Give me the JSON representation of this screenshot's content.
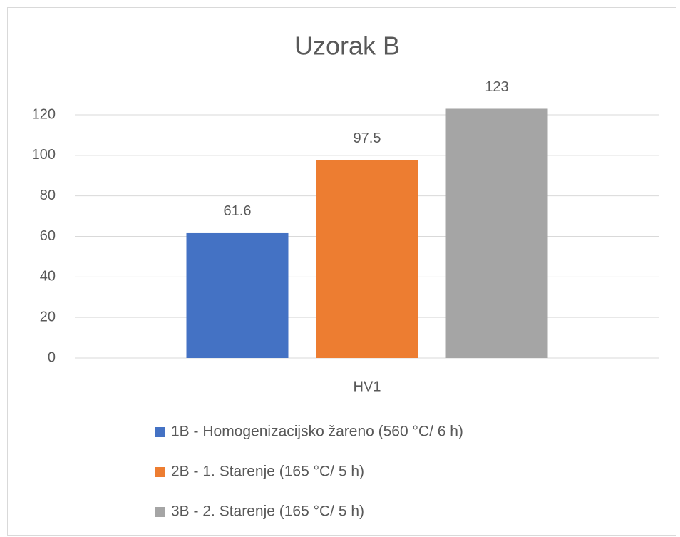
{
  "chart_data": {
    "type": "bar",
    "title": "Uzorak B",
    "categories": [
      "HV1"
    ],
    "series": [
      {
        "name": "1B - Homogenizacijsko žareno (560 °C/ 6 h)",
        "color": "#4472c4",
        "values": [
          61.6
        ]
      },
      {
        "name": "2B - 1. Starenje (165 °C/ 5 h)",
        "color": "#ed7d31",
        "values": [
          97.5
        ]
      },
      {
        "name": "3B - 2. Starenje (165 °C/ 5 h)",
        "color": "#a5a5a5",
        "values": [
          123
        ]
      }
    ],
    "ylim": [
      0,
      130
    ],
    "yticks": [
      0,
      20,
      40,
      60,
      80,
      100,
      120
    ],
    "grid": true,
    "legend": "bottom"
  }
}
